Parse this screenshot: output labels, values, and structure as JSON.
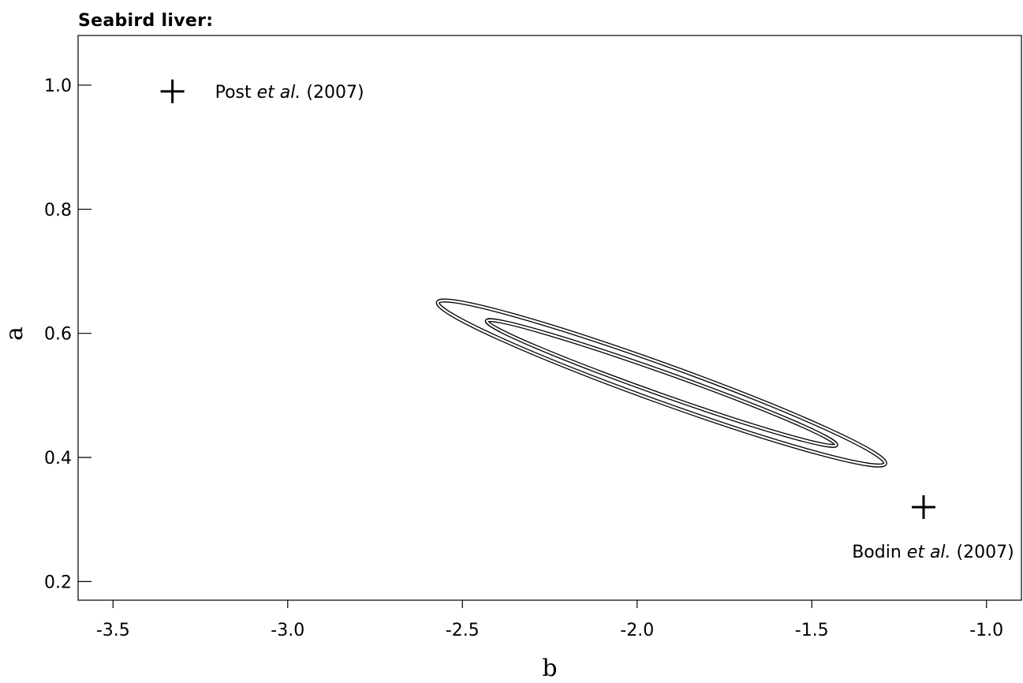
{
  "chart_data": {
    "type": "contour",
    "title": "Seabird liver:",
    "xlabel": "b",
    "ylabel": "a",
    "xlim": [
      -3.6,
      -0.9
    ],
    "ylim": [
      0.17,
      1.08
    ],
    "xticks": [
      -3.5,
      -3.0,
      -2.5,
      -2.0,
      -1.5,
      -1.0
    ],
    "xtick_labels": [
      "-3.5",
      "-3.0",
      "-2.5",
      "-2.0",
      "-1.5",
      "-1.0"
    ],
    "yticks": [
      0.2,
      0.4,
      0.6,
      0.8,
      1.0
    ],
    "ytick_labels": [
      "0.2",
      "0.4",
      "0.6",
      "0.8",
      "1.0"
    ],
    "grid": false,
    "contours": [
      {
        "level": "outer",
        "center": [
          -1.93,
          0.52
        ],
        "ends": [
          [
            -2.57,
            0.65
          ],
          [
            -1.29,
            0.39
          ]
        ],
        "width": 0.06
      },
      {
        "level": "inner",
        "center": [
          -1.93,
          0.52
        ],
        "ends": [
          [
            -2.43,
            0.62
          ],
          [
            -1.43,
            0.42
          ]
        ],
        "width": 0.036
      }
    ],
    "points": [
      {
        "name": "Post",
        "name_italic": "et al.",
        "year": "(2007)",
        "x": -3.33,
        "y": 0.99,
        "marker": "+",
        "label_position": "right"
      },
      {
        "name": "Bodin",
        "name_italic": "et al.",
        "year": "(2007)",
        "x": -1.18,
        "y": 0.32,
        "marker": "+",
        "label_position": "below"
      }
    ]
  }
}
